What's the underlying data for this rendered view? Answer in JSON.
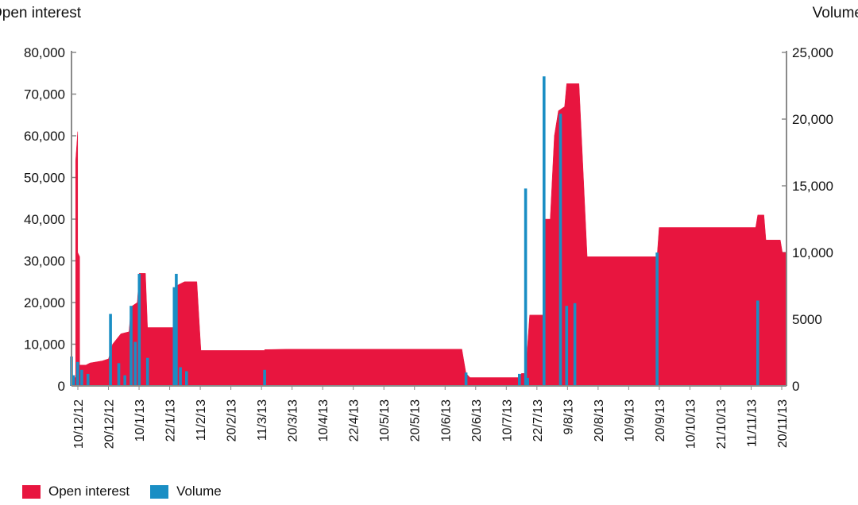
{
  "chart_data": {
    "type": "area",
    "axis_titles": {
      "left": "Open interest",
      "right": "Volume"
    },
    "left_axis": {
      "ylim": [
        0,
        80000
      ],
      "ticks": [
        "0",
        "10,000",
        "20,000",
        "30,000",
        "40,000",
        "50,000",
        "60,000",
        "70,000",
        "80,000"
      ]
    },
    "right_axis": {
      "ylim": [
        0,
        25000
      ],
      "ticks": [
        "0",
        "5000",
        "10,000",
        "15,000",
        "20,000",
        "25,000"
      ]
    },
    "x_range": [
      "2012-12-10",
      "2013-11-23"
    ],
    "x_ticks": [
      "10/12/12",
      "20/12/12",
      "10/1/13",
      "22/1/13",
      "11/2/13",
      "20/2/13",
      "11/3/13",
      "20/3/13",
      "10/4/13",
      "22/4/13",
      "10/5/13",
      "20/5/13",
      "10/6/13",
      "20/6/13",
      "10/7/13",
      "22/7/13",
      "9/8/13",
      "20/8/13",
      "10/9/13",
      "20/9/13",
      "10/10/13",
      "21/10/13",
      "11/11/13",
      "20/11/13"
    ],
    "series": [
      {
        "name": "Open interest",
        "type": "area",
        "axis": "left",
        "color": "#e8153f",
        "points": [
          [
            "2012-12-10",
            2000
          ],
          [
            "2012-12-12",
            2000
          ],
          [
            "2012-12-12",
            54000
          ],
          [
            "2012-12-13",
            61000
          ],
          [
            "2012-12-13",
            32000
          ],
          [
            "2012-12-14",
            31000
          ],
          [
            "2012-12-14",
            5000
          ],
          [
            "2012-12-17",
            5000
          ],
          [
            "2012-12-19",
            5500
          ],
          [
            "2012-12-25",
            6000
          ],
          [
            "2012-12-28",
            6500
          ],
          [
            "2012-12-30",
            10000
          ],
          [
            "2013-01-03",
            12500
          ],
          [
            "2013-01-07",
            13000
          ],
          [
            "2013-01-08",
            19000
          ],
          [
            "2013-01-11",
            20000
          ],
          [
            "2013-01-12",
            27000
          ],
          [
            "2013-01-15",
            27000
          ],
          [
            "2013-01-16",
            14000
          ],
          [
            "2013-01-29",
            14000
          ],
          [
            "2013-01-30",
            24000
          ],
          [
            "2013-02-03",
            25000
          ],
          [
            "2013-02-09",
            25000
          ],
          [
            "2013-02-11",
            8500
          ],
          [
            "2013-03-14",
            8500
          ],
          [
            "2013-03-14",
            8700
          ],
          [
            "2013-03-25",
            8800
          ],
          [
            "2013-06-18",
            8800
          ],
          [
            "2013-06-20",
            3000
          ],
          [
            "2013-06-22",
            2000
          ],
          [
            "2013-07-16",
            2000
          ],
          [
            "2013-07-17",
            3000
          ],
          [
            "2013-07-19",
            3000
          ],
          [
            "2013-07-21",
            17000
          ],
          [
            "2013-07-28",
            17000
          ],
          [
            "2013-07-28",
            40000
          ],
          [
            "2013-07-31",
            40000
          ],
          [
            "2013-08-02",
            60000
          ],
          [
            "2013-08-04",
            66000
          ],
          [
            "2013-08-07",
            67000
          ],
          [
            "2013-08-08",
            72500
          ],
          [
            "2013-08-14",
            72500
          ],
          [
            "2013-08-18",
            31000
          ],
          [
            "2013-09-21",
            31000
          ],
          [
            "2013-09-22",
            38000
          ],
          [
            "2013-11-08",
            38000
          ],
          [
            "2013-11-09",
            41000
          ],
          [
            "2013-11-12",
            41000
          ],
          [
            "2013-11-13",
            35000
          ],
          [
            "2013-11-20",
            35000
          ],
          [
            "2013-11-21",
            32000
          ],
          [
            "2013-11-23",
            32000
          ]
        ]
      },
      {
        "name": "Volume",
        "type": "bar",
        "axis": "right",
        "color": "#1a8ec4",
        "points": [
          [
            "2012-12-10",
            2200
          ],
          [
            "2012-12-11",
            800
          ],
          [
            "2012-12-13",
            1800
          ],
          [
            "2012-12-15",
            1200
          ],
          [
            "2012-12-18",
            900
          ],
          [
            "2012-12-29",
            5400
          ],
          [
            "2013-01-02",
            1700
          ],
          [
            "2013-01-05",
            800
          ],
          [
            "2013-01-08",
            6000
          ],
          [
            "2013-01-10",
            3300
          ],
          [
            "2013-01-12",
            8400
          ],
          [
            "2013-01-16",
            2100
          ],
          [
            "2013-01-29",
            7400
          ],
          [
            "2013-01-30",
            8400
          ],
          [
            "2013-02-01",
            1400
          ],
          [
            "2013-02-04",
            1100
          ],
          [
            "2013-03-14",
            1200
          ],
          [
            "2013-06-20",
            1000
          ],
          [
            "2013-07-16",
            900
          ],
          [
            "2013-07-19",
            14800
          ],
          [
            "2013-07-20",
            600
          ],
          [
            "2013-07-28",
            23200
          ],
          [
            "2013-08-05",
            20400
          ],
          [
            "2013-08-08",
            6000
          ],
          [
            "2013-08-12",
            6200
          ],
          [
            "2013-09-21",
            10000
          ],
          [
            "2013-11-09",
            6400
          ]
        ]
      }
    ],
    "legend": {
      "position": "bottom-left",
      "items": [
        "Open interest",
        "Volume"
      ]
    },
    "grid": false
  }
}
